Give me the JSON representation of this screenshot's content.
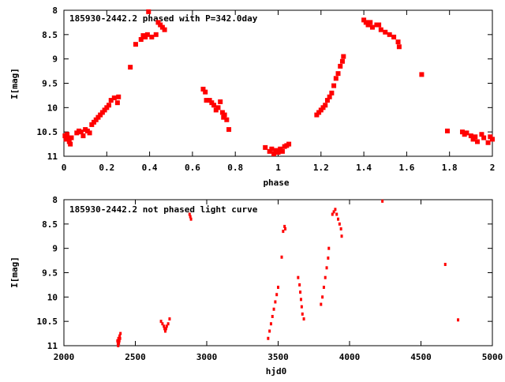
{
  "chart_data": [
    {
      "type": "scatter",
      "title": "185930-2442.2 phased with P=342.0day",
      "xlabel": "phase",
      "ylabel": "I[mag]",
      "xlim": [
        0,
        2
      ],
      "ylim": [
        11,
        8
      ],
      "y_inverted": true,
      "grid": false,
      "legend": "none",
      "marker_color": "#ff0000",
      "marker": "square-cross",
      "xticks": [
        0,
        0.2,
        0.4,
        0.6,
        0.8,
        1,
        1.2,
        1.4,
        1.6,
        1.8,
        2
      ],
      "xtick_labels": [
        "0",
        "0.2",
        "0.4",
        "0.6",
        "0.8",
        "1",
        "1.2",
        "1.4",
        "1.6",
        "1.8",
        "2"
      ],
      "yticks": [
        8,
        8.5,
        9,
        9.5,
        10,
        10.5,
        11
      ],
      "ytick_labels": [
        "8",
        "8.5",
        "9",
        "9.5",
        "10",
        "10.5",
        "11"
      ],
      "points": [
        [
          0.005,
          10.58
        ],
        [
          0.01,
          10.65
        ],
        [
          0.015,
          10.55
        ],
        [
          0.02,
          10.62
        ],
        [
          0.025,
          10.7
        ],
        [
          0.03,
          10.75
        ],
        [
          0.035,
          10.62
        ],
        [
          0.06,
          10.52
        ],
        [
          0.07,
          10.48
        ],
        [
          0.08,
          10.5
        ],
        [
          0.09,
          10.58
        ],
        [
          0.1,
          10.45
        ],
        [
          0.11,
          10.48
        ],
        [
          0.12,
          10.52
        ],
        [
          0.13,
          10.35
        ],
        [
          0.14,
          10.3
        ],
        [
          0.15,
          10.25
        ],
        [
          0.16,
          10.2
        ],
        [
          0.17,
          10.15
        ],
        [
          0.18,
          10.1
        ],
        [
          0.19,
          10.05
        ],
        [
          0.2,
          10.0
        ],
        [
          0.21,
          9.95
        ],
        [
          0.22,
          9.85
        ],
        [
          0.235,
          9.8
        ],
        [
          0.25,
          9.9
        ],
        [
          0.255,
          9.78
        ],
        [
          0.31,
          9.17
        ],
        [
          0.335,
          8.7
        ],
        [
          0.36,
          8.6
        ],
        [
          0.37,
          8.52
        ],
        [
          0.38,
          8.55
        ],
        [
          0.39,
          8.5
        ],
        [
          0.395,
          8.03
        ],
        [
          0.41,
          8.55
        ],
        [
          0.43,
          8.5
        ],
        [
          0.44,
          8.25
        ],
        [
          0.45,
          8.3
        ],
        [
          0.46,
          8.35
        ],
        [
          0.47,
          8.4
        ],
        [
          0.65,
          9.62
        ],
        [
          0.66,
          9.68
        ],
        [
          0.665,
          9.85
        ],
        [
          0.68,
          9.85
        ],
        [
          0.69,
          9.9
        ],
        [
          0.7,
          9.95
        ],
        [
          0.71,
          10.05
        ],
        [
          0.72,
          10.0
        ],
        [
          0.73,
          9.88
        ],
        [
          0.74,
          10.1
        ],
        [
          0.745,
          10.2
        ],
        [
          0.75,
          10.15
        ],
        [
          0.76,
          10.25
        ],
        [
          0.77,
          10.45
        ],
        [
          0.94,
          10.82
        ],
        [
          0.96,
          10.9
        ],
        [
          0.97,
          10.85
        ],
        [
          0.98,
          10.95
        ],
        [
          0.99,
          10.88
        ],
        [
          1.0,
          10.92
        ],
        [
          1.01,
          10.85
        ],
        [
          1.02,
          10.9
        ],
        [
          1.03,
          10.8
        ],
        [
          1.04,
          10.78
        ],
        [
          1.05,
          10.75
        ],
        [
          1.18,
          10.15
        ],
        [
          1.19,
          10.1
        ],
        [
          1.2,
          10.05
        ],
        [
          1.21,
          10.0
        ],
        [
          1.22,
          9.95
        ],
        [
          1.23,
          9.85
        ],
        [
          1.24,
          9.78
        ],
        [
          1.25,
          9.7
        ],
        [
          1.26,
          9.55
        ],
        [
          1.27,
          9.4
        ],
        [
          1.28,
          9.3
        ],
        [
          1.29,
          9.15
        ],
        [
          1.3,
          9.05
        ],
        [
          1.305,
          8.95
        ],
        [
          1.4,
          8.2
        ],
        [
          1.41,
          8.25
        ],
        [
          1.42,
          8.3
        ],
        [
          1.43,
          8.25
        ],
        [
          1.44,
          8.35
        ],
        [
          1.46,
          8.3
        ],
        [
          1.47,
          8.3
        ],
        [
          1.48,
          8.4
        ],
        [
          1.5,
          8.45
        ],
        [
          1.52,
          8.5
        ],
        [
          1.54,
          8.55
        ],
        [
          1.56,
          8.65
        ],
        [
          1.565,
          8.75
        ],
        [
          1.67,
          9.32
        ],
        [
          1.79,
          10.48
        ],
        [
          1.86,
          10.5
        ],
        [
          1.87,
          10.55
        ],
        [
          1.88,
          10.52
        ],
        [
          1.9,
          10.58
        ],
        [
          1.91,
          10.65
        ],
        [
          1.92,
          10.6
        ],
        [
          1.93,
          10.7
        ],
        [
          1.95,
          10.55
        ],
        [
          1.96,
          10.62
        ],
        [
          1.98,
          10.72
        ],
        [
          1.99,
          10.6
        ],
        [
          2.0,
          10.65
        ]
      ]
    },
    {
      "type": "scatter",
      "title": "185930-2442.2 not phased light curve",
      "xlabel": "hjd0",
      "ylabel": "I[mag]",
      "xlim": [
        2000,
        5000
      ],
      "ylim": [
        11,
        8
      ],
      "y_inverted": true,
      "grid": false,
      "legend": "none",
      "marker_color": "#ff0000",
      "marker": "dot",
      "xticks": [
        2000,
        2500,
        3000,
        3500,
        4000,
        4500,
        5000
      ],
      "xtick_labels": [
        "2000",
        "2500",
        "3000",
        "3500",
        "4000",
        "4500",
        "5000"
      ],
      "yticks": [
        8,
        8.5,
        9,
        9.5,
        10,
        10.5,
        11
      ],
      "ytick_labels": [
        "8",
        "8.5",
        "9",
        "9.5",
        "10",
        "10.5",
        "11"
      ],
      "points": [
        [
          2375,
          10.9
        ],
        [
          2378,
          10.95
        ],
        [
          2380,
          11.0
        ],
        [
          2382,
          10.85
        ],
        [
          2385,
          10.95
        ],
        [
          2388,
          10.9
        ],
        [
          2390,
          10.8
        ],
        [
          2393,
          10.85
        ],
        [
          2396,
          10.75
        ],
        [
          2680,
          10.5
        ],
        [
          2690,
          10.55
        ],
        [
          2700,
          10.6
        ],
        [
          2705,
          10.65
        ],
        [
          2710,
          10.7
        ],
        [
          2715,
          10.65
        ],
        [
          2720,
          10.6
        ],
        [
          2730,
          10.55
        ],
        [
          2740,
          10.45
        ],
        [
          2880,
          8.3
        ],
        [
          2885,
          8.35
        ],
        [
          2890,
          8.4
        ],
        [
          3430,
          10.85
        ],
        [
          3440,
          10.7
        ],
        [
          3450,
          10.55
        ],
        [
          3460,
          10.4
        ],
        [
          3470,
          10.25
        ],
        [
          3480,
          10.1
        ],
        [
          3490,
          9.95
        ],
        [
          3500,
          9.8
        ],
        [
          3525,
          9.18
        ],
        [
          3535,
          8.65
        ],
        [
          3545,
          8.55
        ],
        [
          3550,
          8.6
        ],
        [
          3640,
          9.6
        ],
        [
          3650,
          9.75
        ],
        [
          3655,
          9.9
        ],
        [
          3660,
          10.05
        ],
        [
          3665,
          10.2
        ],
        [
          3670,
          10.35
        ],
        [
          3680,
          10.45
        ],
        [
          3800,
          10.15
        ],
        [
          3810,
          10.0
        ],
        [
          3820,
          9.8
        ],
        [
          3830,
          9.6
        ],
        [
          3840,
          9.4
        ],
        [
          3850,
          9.2
        ],
        [
          3855,
          9.0
        ],
        [
          3880,
          8.3
        ],
        [
          3890,
          8.25
        ],
        [
          3900,
          8.2
        ],
        [
          3910,
          8.3
        ],
        [
          3920,
          8.4
        ],
        [
          3930,
          8.5
        ],
        [
          3940,
          8.6
        ],
        [
          3945,
          8.75
        ],
        [
          4230,
          8.03
        ],
        [
          4670,
          9.33
        ],
        [
          4760,
          10.47
        ]
      ]
    }
  ]
}
